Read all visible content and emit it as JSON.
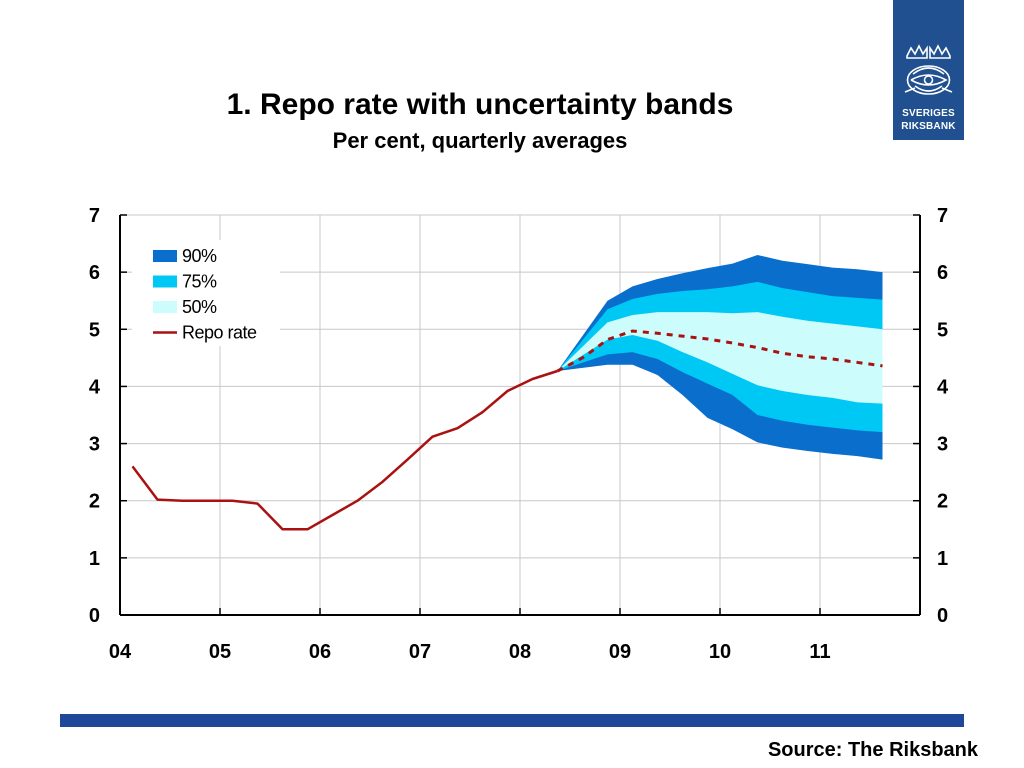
{
  "title": "1. Repo rate with uncertainty bands",
  "subtitle": "Per cent, quarterly averages",
  "source": "Source: The Riksbank",
  "logo": {
    "line1": "SVERIGES",
    "line2": "RIKSBANK",
    "icon": "riksbank-crest-icon",
    "background": "#20508f"
  },
  "colors": {
    "band90": "#0a6fcc",
    "band75": "#00c8f5",
    "band50": "#ccfcfc",
    "repo": "#aa1111",
    "grid": "#c8c8c8",
    "footer_bar": "#20489a"
  },
  "chart_data": {
    "type": "area",
    "title": "1. Repo rate with uncertainty bands",
    "subtitle": "Per cent, quarterly averages",
    "xlabel": "",
    "ylabel": "",
    "x_tick_labels": [
      "04",
      "05",
      "06",
      "07",
      "08",
      "09",
      "10",
      "11"
    ],
    "x_ticks": [
      2004,
      2005,
      2006,
      2007,
      2008,
      2009,
      2010,
      2011
    ],
    "xlim": [
      2004,
      2012
    ],
    "ylim": [
      0,
      7
    ],
    "y_ticks": [
      0,
      1,
      2,
      3,
      4,
      5,
      6,
      7
    ],
    "grid": true,
    "legend_position": "top-left",
    "legend": [
      "90%",
      "75%",
      "50%",
      "Repo rate"
    ],
    "repo_rate_outcome": {
      "name": "Repo rate",
      "x": [
        2004.125,
        2004.375,
        2004.625,
        2004.875,
        2005.125,
        2005.375,
        2005.625,
        2005.875,
        2006.125,
        2006.375,
        2006.625,
        2006.875,
        2007.125,
        2007.375,
        2007.625,
        2007.875,
        2008.125,
        2008.375
      ],
      "y": [
        2.6,
        2.02,
        2.0,
        2.0,
        2.0,
        1.95,
        1.5,
        1.5,
        1.75,
        2.0,
        2.33,
        2.72,
        3.12,
        3.27,
        3.55,
        3.92,
        4.13,
        4.27
      ]
    },
    "repo_rate_forecast": {
      "x": [
        2008.375,
        2008.625,
        2008.875,
        2009.125,
        2009.375,
        2009.625,
        2009.875,
        2010.125,
        2010.375,
        2010.625,
        2010.875,
        2011.125,
        2011.375,
        2011.625
      ],
      "y": [
        4.27,
        4.5,
        4.82,
        4.97,
        4.93,
        4.88,
        4.83,
        4.76,
        4.68,
        4.58,
        4.52,
        4.48,
        4.42,
        4.36
      ]
    },
    "band_x": [
      2008.375,
      2008.875,
      2009.125,
      2009.375,
      2009.625,
      2009.875,
      2010.125,
      2010.375,
      2010.625,
      2010.875,
      2011.125,
      2011.375,
      2011.625
    ],
    "bands": {
      "90%": {
        "upper": [
          4.27,
          5.5,
          5.75,
          5.88,
          5.98,
          6.07,
          6.15,
          6.3,
          6.2,
          6.14,
          6.08,
          6.05,
          6.0
        ],
        "lower": [
          4.27,
          4.38,
          4.38,
          4.2,
          3.85,
          3.45,
          3.25,
          3.02,
          2.93,
          2.87,
          2.82,
          2.78,
          2.72
        ]
      },
      "75%": {
        "upper": [
          4.27,
          5.35,
          5.53,
          5.62,
          5.67,
          5.7,
          5.75,
          5.83,
          5.72,
          5.65,
          5.58,
          5.55,
          5.52
        ],
        "lower": [
          4.27,
          4.56,
          4.6,
          4.48,
          4.25,
          4.05,
          3.85,
          3.5,
          3.4,
          3.33,
          3.28,
          3.23,
          3.2
        ]
      },
      "50%": {
        "upper": [
          4.27,
          5.12,
          5.25,
          5.3,
          5.3,
          5.3,
          5.28,
          5.3,
          5.22,
          5.15,
          5.1,
          5.05,
          5.0
        ],
        "lower": [
          4.27,
          4.82,
          4.9,
          4.8,
          4.6,
          4.42,
          4.22,
          4.02,
          3.92,
          3.85,
          3.8,
          3.72,
          3.7
        ]
      }
    }
  }
}
